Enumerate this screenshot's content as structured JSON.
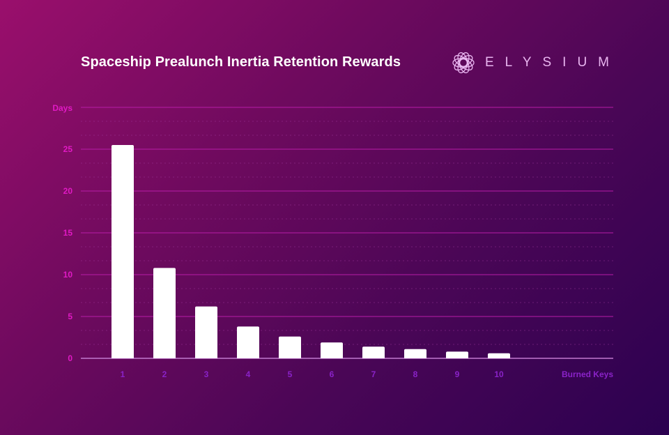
{
  "header": {
    "title": "Spaceship Prealunch Inertia Retention Rewards",
    "brand_name": "ELYSIUM",
    "brand_icon": "spiral-logo-icon"
  },
  "colors": {
    "accent": "#e01ac4",
    "xaxis_label": "#8a22c8",
    "bar": "#ffffff",
    "grid": "#b81ca8"
  },
  "chart_data": {
    "type": "bar",
    "ylabel": "Days",
    "xlabel": "Burned Keys",
    "categories": [
      "1",
      "2",
      "3",
      "4",
      "5",
      "6",
      "7",
      "8",
      "9",
      "10"
    ],
    "values": [
      25.5,
      10.8,
      6.2,
      3.8,
      2.6,
      1.9,
      1.4,
      1.1,
      0.8,
      0.6
    ],
    "yticks": [
      "0",
      "5",
      "10",
      "15",
      "20",
      "25"
    ],
    "ylim": [
      0,
      30
    ],
    "grid": true,
    "minor_grid": true
  }
}
